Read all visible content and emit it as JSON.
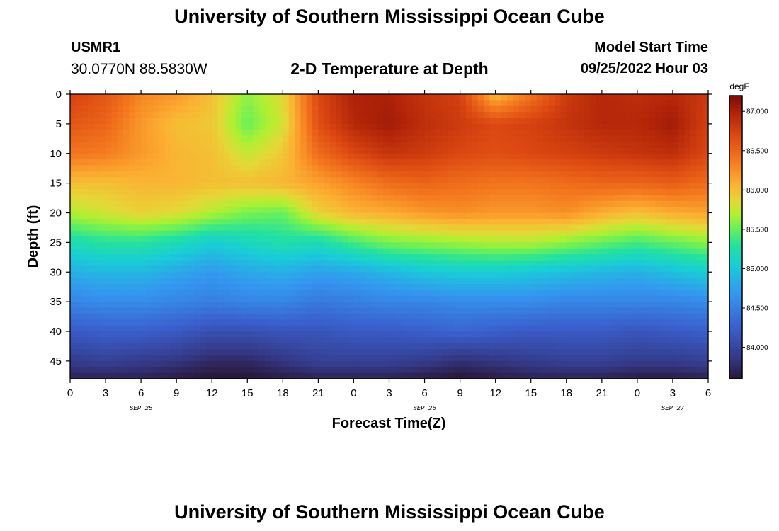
{
  "header": {
    "main_title": "University of Southern Mississippi Ocean Cube",
    "station_id": "USMR1",
    "coords": "30.0770N  88.5830W",
    "plot_title": "2-D Temperature at Depth",
    "start_label": "Model Start Time",
    "start_value": "09/25/2022 Hour 03"
  },
  "footer": {
    "title": "University of Southern Mississippi Ocean Cube"
  },
  "chart_data": {
    "type": "heatmap",
    "title": "2-D Temperature at Depth",
    "xlabel": "Forecast Time(Z)",
    "ylabel": "Depth (ft)",
    "units": "degF",
    "x_ticks": [
      "0",
      "3",
      "6",
      "9",
      "12",
      "15",
      "18",
      "21",
      "0",
      "3",
      "6",
      "9",
      "12",
      "15",
      "18",
      "21",
      "0",
      "3",
      "6"
    ],
    "date_labels": [
      {
        "label": "SEP 25",
        "hour": 6
      },
      {
        "label": "SEP 26",
        "hour": 30
      },
      {
        "label": "SEP 27",
        "hour": 51
      }
    ],
    "x_range_hours": [
      0,
      54
    ],
    "y_ticks": [
      0,
      5,
      10,
      15,
      20,
      25,
      30,
      35,
      40,
      45
    ],
    "ylim": [
      0,
      48
    ],
    "color_range": [
      83.6,
      87.2
    ],
    "colorbar_ticks": [
      "87.000",
      "86.500",
      "86.000",
      "85.500",
      "85.000",
      "84.500",
      "84.000"
    ],
    "colorbar_values": [
      87.0,
      86.5,
      86.0,
      85.5,
      85.0,
      84.5,
      84.0
    ],
    "times_hours": [
      0,
      3,
      6,
      9,
      12,
      15,
      18,
      21,
      24,
      27,
      30,
      33,
      36,
      39,
      42,
      45,
      48,
      51,
      54
    ],
    "depths_ft": [
      0,
      5,
      10,
      15,
      20,
      25,
      30,
      35,
      40,
      45,
      48
    ],
    "values_degF": [
      [
        86.75,
        86.6,
        86.3,
        86.2,
        86.0,
        85.6,
        85.85,
        86.7,
        87.0,
        87.0,
        86.85,
        86.75,
        86.0,
        86.4,
        86.8,
        86.95,
        86.9,
        86.95,
        86.8
      ],
      [
        86.6,
        86.5,
        86.2,
        86.0,
        85.95,
        85.5,
        85.8,
        86.65,
        86.95,
        87.05,
        86.9,
        86.8,
        86.7,
        86.75,
        86.85,
        86.95,
        86.95,
        87.05,
        86.75
      ],
      [
        86.4,
        86.35,
        86.2,
        86.05,
        86.0,
        85.75,
        85.95,
        86.45,
        86.7,
        86.85,
        86.8,
        86.7,
        86.65,
        86.7,
        86.75,
        86.8,
        86.85,
        86.9,
        86.7
      ],
      [
        86.0,
        86.0,
        86.05,
        86.05,
        86.0,
        86.0,
        86.05,
        86.15,
        86.3,
        86.45,
        86.5,
        86.45,
        86.4,
        86.4,
        86.45,
        86.5,
        86.5,
        86.55,
        86.45
      ],
      [
        85.7,
        85.8,
        85.9,
        85.85,
        85.7,
        85.55,
        85.5,
        85.9,
        86.05,
        86.1,
        86.2,
        86.25,
        86.2,
        86.2,
        86.25,
        86.1,
        86.0,
        86.1,
        86.15
      ],
      [
        85.2,
        85.3,
        85.3,
        85.2,
        85.05,
        85.15,
        85.25,
        85.2,
        85.4,
        85.55,
        85.6,
        85.65,
        85.7,
        85.7,
        85.6,
        85.5,
        85.4,
        85.5,
        85.6
      ],
      [
        84.85,
        84.9,
        84.9,
        84.8,
        84.7,
        84.8,
        84.85,
        84.75,
        84.8,
        84.9,
        85.0,
        85.05,
        85.05,
        85.0,
        84.95,
        84.9,
        84.85,
        84.95,
        85.05
      ],
      [
        84.55,
        84.6,
        84.6,
        84.55,
        84.5,
        84.55,
        84.55,
        84.45,
        84.5,
        84.55,
        84.55,
        84.6,
        84.6,
        84.6,
        84.55,
        84.55,
        84.55,
        84.55,
        84.6
      ],
      [
        84.2,
        84.25,
        84.25,
        84.2,
        84.1,
        84.1,
        84.15,
        84.15,
        84.2,
        84.2,
        84.25,
        84.3,
        84.25,
        84.2,
        84.2,
        84.2,
        84.15,
        84.2,
        84.25
      ],
      [
        83.9,
        83.95,
        83.9,
        83.85,
        83.75,
        83.75,
        83.85,
        83.95,
        83.95,
        83.95,
        83.9,
        83.8,
        83.85,
        83.9,
        83.95,
        83.95,
        83.9,
        83.9,
        83.95
      ],
      [
        83.7,
        83.7,
        83.7,
        83.65,
        83.6,
        83.6,
        83.65,
        83.7,
        83.7,
        83.7,
        83.65,
        83.6,
        83.65,
        83.7,
        83.7,
        83.7,
        83.65,
        83.65,
        83.7
      ]
    ]
  }
}
